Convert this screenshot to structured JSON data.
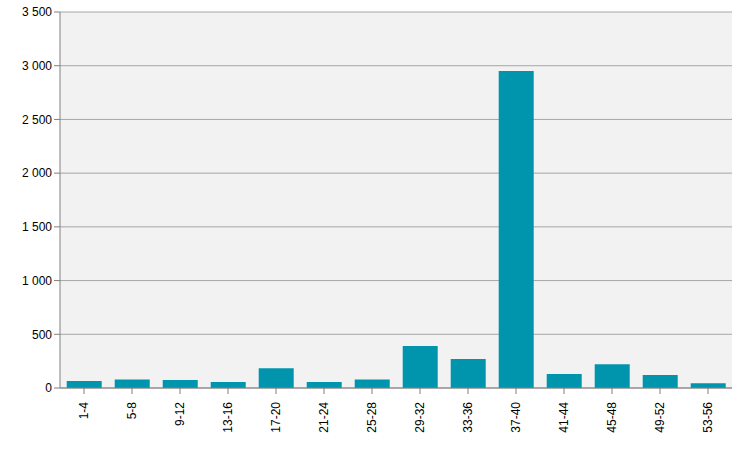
{
  "chart_data": {
    "type": "bar",
    "categories": [
      "1-4",
      "5-8",
      "9-12",
      "13-16",
      "17-20",
      "21-24",
      "25-28",
      "29-32",
      "33-36",
      "37-40",
      "41-44",
      "45-48",
      "49-52",
      "53-56"
    ],
    "values": [
      65,
      80,
      75,
      55,
      185,
      55,
      80,
      390,
      270,
      2950,
      130,
      220,
      120,
      45
    ],
    "color": "#0095ad",
    "ylim": [
      0,
      3500
    ],
    "yticks": [
      0,
      {
        "value": 500,
        "label": "500"
      },
      {
        "value": 1000,
        "label": "1 000"
      },
      {
        "value": 1500,
        "label": "1 500"
      },
      {
        "value": 2000,
        "label": "2 000"
      },
      {
        "value": 2500,
        "label": "2 500"
      },
      {
        "value": 3000,
        "label": "3 000"
      },
      {
        "value": 3500,
        "label": "3 500"
      }
    ],
    "grid": true
  }
}
